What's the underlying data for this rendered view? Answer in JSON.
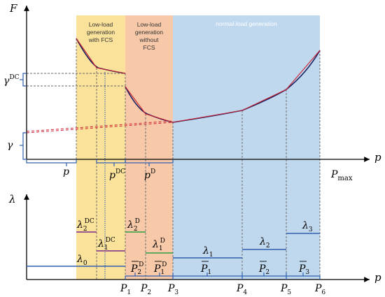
{
  "regions": {
    "fcs": {
      "line1": "Low-load",
      "line2": "generation",
      "line3": "with FCS",
      "fill": "#fbe29a"
    },
    "nofcs": {
      "line1": "Low-load",
      "line2": "generation",
      "line3": "without",
      "line4": "FCS",
      "fill": "#f7c9a8"
    },
    "normal": {
      "line1": "normal-load generation",
      "fill": "#c0d8ee"
    }
  },
  "top_axes": {
    "y_label": "F",
    "x_label": "p",
    "gamma_dc": {
      "sym": "γ",
      "sup": "DC"
    },
    "gamma": {
      "sym": "γ"
    },
    "p_low": "p",
    "p_dc": {
      "sym": "p",
      "sup": "DC"
    },
    "p_d": {
      "sym": "p",
      "sup": "D"
    },
    "p_max": {
      "sym": "P",
      "sub": "max"
    }
  },
  "bottom_axes": {
    "y_label": "λ",
    "x_label": "p",
    "lambda0": {
      "sym": "λ",
      "sub": "0"
    },
    "lambda1_dc": {
      "sym": "λ",
      "sub": "1",
      "sup": "DC"
    },
    "lambda2_dc": {
      "sym": "λ",
      "sub": "2",
      "sup": "DC"
    },
    "lambda1_d": {
      "sym": "λ",
      "sub": "1",
      "sup": "D"
    },
    "lambda2_d": {
      "sym": "λ",
      "sub": "2",
      "sup": "D"
    },
    "lambda1": {
      "sym": "λ",
      "sub": "1"
    },
    "lambda2": {
      "sym": "λ",
      "sub": "2"
    },
    "lambda3": {
      "sym": "λ",
      "sub": "3"
    },
    "pbar2_d": {
      "sym": "P",
      "sub": "2",
      "sup": "D"
    },
    "pbar1_d": {
      "sym": "P",
      "sub": "1",
      "sup": "D"
    },
    "pbar1": {
      "sym": "P",
      "sub": "1"
    },
    "pbar2": {
      "sym": "P",
      "sub": "2"
    },
    "pbar3": {
      "sym": "P",
      "sub": "3"
    },
    "ticks": [
      {
        "sym": "P",
        "sub": "1"
      },
      {
        "sym": "P",
        "sub": "2"
      },
      {
        "sym": "P",
        "sub": "3"
      },
      {
        "sym": "P",
        "sub": "4"
      },
      {
        "sym": "P",
        "sub": "5"
      },
      {
        "sym": "P",
        "sub": "6"
      }
    ]
  },
  "colors": {
    "curve": "#1a1f5e",
    "approx": "#cc2233",
    "bracket": "#2f5fae",
    "green": "#2ea043",
    "purple": "#7a2a8a",
    "dashed": "#666666"
  }
}
